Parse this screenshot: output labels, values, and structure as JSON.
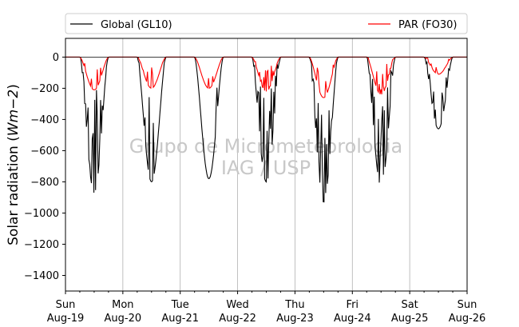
{
  "chart_data": {
    "type": "line",
    "ylabel_text": "Solar radiation (",
    "ylabel_unit": "Wm−2",
    "ylabel_close": ")",
    "ylim": [
      -1500,
      120
    ],
    "yticks": [
      0,
      -200,
      -400,
      -600,
      -800,
      -1000,
      -1200,
      -1400
    ],
    "xlim_days": [
      0,
      7
    ],
    "xticks": [
      {
        "day": 0,
        "weekday": "Sun",
        "date": "Aug-19"
      },
      {
        "day": 1,
        "weekday": "Mon",
        "date": "Aug-20"
      },
      {
        "day": 2,
        "weekday": "Tue",
        "date": "Aug-21"
      },
      {
        "day": 3,
        "weekday": "Wed",
        "date": "Aug-22"
      },
      {
        "day": 4,
        "weekday": "Thu",
        "date": "Aug-23"
      },
      {
        "day": 5,
        "weekday": "Fri",
        "date": "Aug-24"
      },
      {
        "day": 6,
        "weekday": "Sat",
        "date": "Aug-25"
      },
      {
        "day": 7,
        "weekday": "Sun",
        "date": "Aug-26"
      }
    ],
    "grid": "vertical",
    "legend_position": "top",
    "watermark": [
      "Grupo de Micrometeorologia",
      "IAG / USP"
    ],
    "series": [
      {
        "name": "Global (GL10)",
        "color": "#000000",
        "daily_peak": [
          -870,
          -800,
          -780,
          -800,
          -930,
          -830,
          -460
        ],
        "daily_noise": [
          0.55,
          0.35,
          0.08,
          0.5,
          0.6,
          0.5,
          0.35
        ]
      },
      {
        "name": "PAR (FO30)",
        "color": "#ff0000",
        "daily_peak": [
          -210,
          -200,
          -200,
          -220,
          -260,
          -240,
          -110
        ],
        "daily_noise": [
          0.3,
          0.3,
          0.05,
          0.3,
          0.35,
          0.3,
          0.3
        ]
      }
    ]
  }
}
